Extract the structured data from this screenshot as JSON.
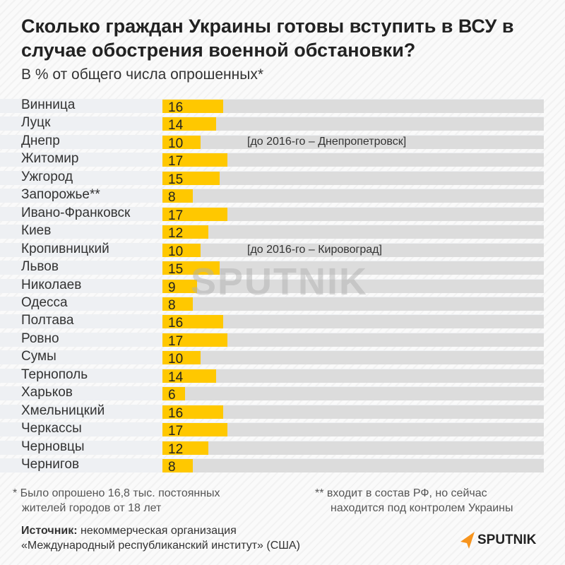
{
  "chart_data": {
    "type": "bar",
    "title": "Сколько граждан Украины готовы вступить в ВСУ в случае обострения военной обстановки?",
    "subtitle": "В % от общего числа опрошенных*",
    "xlim": [
      0,
      100
    ],
    "categories": [
      "Винница",
      "Луцк",
      "Днепр",
      "Житомир",
      "Ужгород",
      "Запорожье**",
      "Ивано-Франковск",
      "Киев",
      "Кропивницкий",
      "Львов",
      "Николаев",
      "Одесса",
      "Полтава",
      "Ровно",
      "Сумы",
      "Тернополь",
      "Харьков",
      "Хмельницкий",
      "Черкассы",
      "Черновцы",
      "Чернигов"
    ],
    "values": [
      16,
      14,
      10,
      17,
      15,
      8,
      17,
      12,
      10,
      15,
      9,
      8,
      16,
      17,
      10,
      14,
      6,
      16,
      17,
      12,
      8
    ],
    "annotations": {
      "2": "[до 2016-го – Днепропетровск]",
      "8": "[до 2016-го – Кировоград]"
    },
    "colors": {
      "bar": "#ffc800",
      "track": "#dcdcdc"
    }
  },
  "footnotes": {
    "star1": "* Было опрошено 16,8 тыс. постоянных",
    "star2": "жителей городов от 18 лет",
    "dstar1": "** входит в состав РФ, но сейчас",
    "dstar2": "находится под контролем Украины",
    "source_label": "Источник:",
    "source1": " некоммерческая организация",
    "source2": "«Международный республиканский институт» (США)"
  },
  "logo": "SPUTNIK",
  "watermark": "SPUTNIK"
}
